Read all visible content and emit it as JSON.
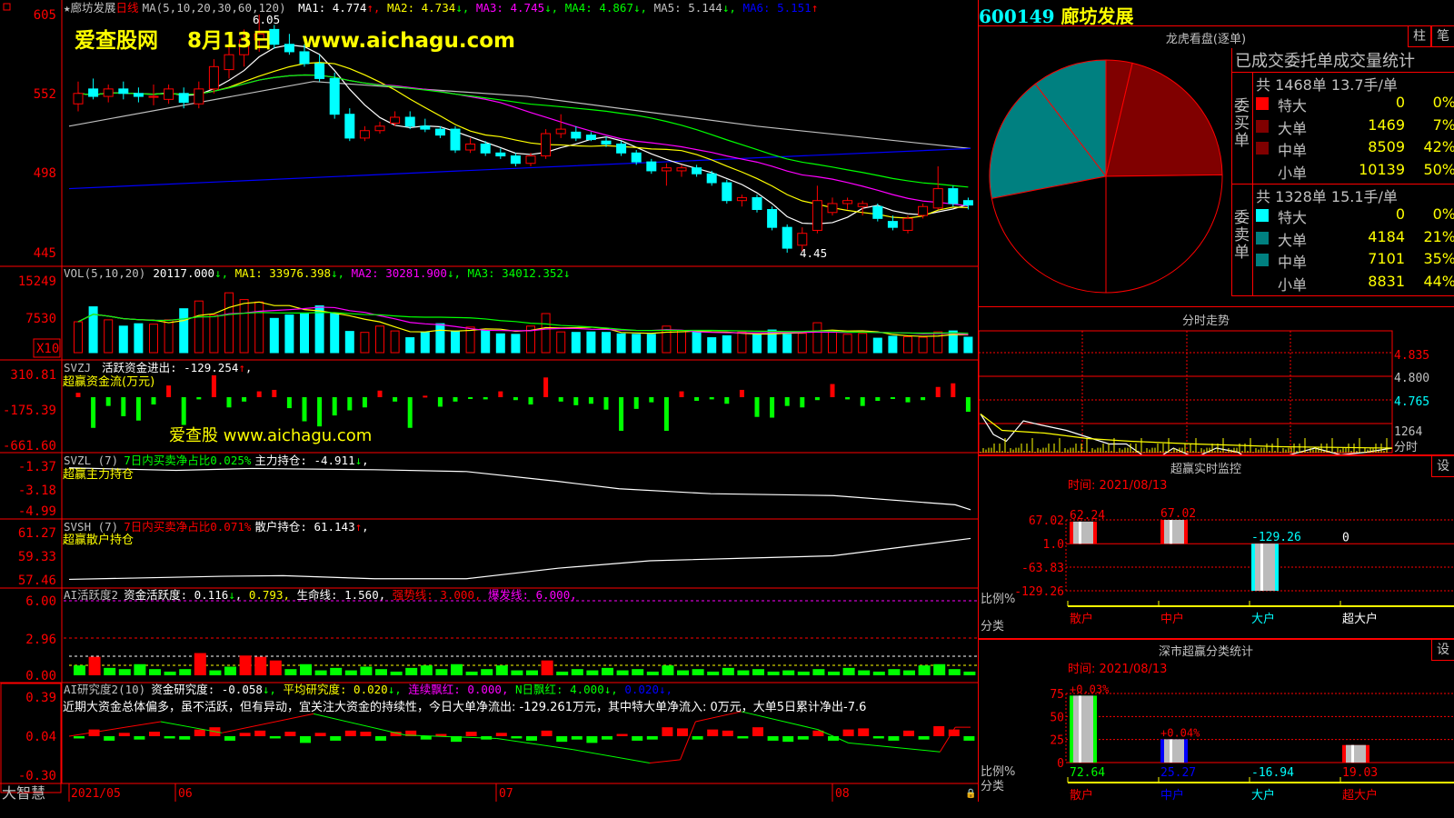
{
  "stock": {
    "code": "600149",
    "name": "廊坊发展"
  },
  "main": {
    "header": {
      "name": "廊坊发展",
      "period": "日线",
      "ma_params": "MA(5,10,20,30,60,120)",
      "ma1": "MA1: 4.774",
      "ma2": "MA2: 4.734",
      "ma3": "MA3: 4.745",
      "ma4": "MA4: 4.867",
      "ma5": "MA5: 5.144",
      "ma6": "MA6: 5.151"
    },
    "watermark": "爱查股网    8月13日    www.aichagu.com",
    "high_label": "6.05",
    "low_label": "4.45",
    "y_ticks": [
      "605",
      "552",
      "498",
      "445"
    ],
    "candles": [
      [
        5.45,
        5.6,
        5.4,
        5.52
      ],
      [
        5.55,
        5.62,
        5.48,
        5.5
      ],
      [
        5.5,
        5.58,
        5.46,
        5.55
      ],
      [
        5.55,
        5.6,
        5.48,
        5.52
      ],
      [
        5.52,
        5.56,
        5.46,
        5.5
      ],
      [
        5.5,
        5.58,
        5.44,
        5.5
      ],
      [
        5.48,
        5.58,
        5.45,
        5.55
      ],
      [
        5.52,
        5.56,
        5.42,
        5.46
      ],
      [
        5.45,
        5.6,
        5.42,
        5.55
      ],
      [
        5.55,
        5.75,
        5.52,
        5.7
      ],
      [
        5.68,
        5.85,
        5.62,
        5.78
      ],
      [
        5.78,
        5.95,
        5.7,
        5.88
      ],
      [
        5.88,
        6.05,
        5.8,
        5.92
      ],
      [
        5.95,
        5.98,
        5.82,
        5.85
      ],
      [
        5.85,
        5.92,
        5.78,
        5.8
      ],
      [
        5.8,
        5.85,
        5.7,
        5.72
      ],
      [
        5.72,
        5.78,
        5.6,
        5.62
      ],
      [
        5.62,
        5.66,
        5.35,
        5.38
      ],
      [
        5.38,
        5.42,
        5.2,
        5.22
      ],
      [
        5.22,
        5.3,
        5.2,
        5.27
      ],
      [
        5.27,
        5.33,
        5.25,
        5.3
      ],
      [
        5.32,
        5.4,
        5.3,
        5.36
      ],
      [
        5.36,
        5.4,
        5.28,
        5.3
      ],
      [
        5.3,
        5.35,
        5.26,
        5.28
      ],
      [
        5.28,
        5.3,
        5.22,
        5.24
      ],
      [
        5.28,
        5.3,
        5.12,
        5.14
      ],
      [
        5.14,
        5.22,
        5.12,
        5.18
      ],
      [
        5.18,
        5.2,
        5.1,
        5.12
      ],
      [
        5.12,
        5.15,
        5.08,
        5.1
      ],
      [
        5.1,
        5.12,
        5.03,
        5.05
      ],
      [
        5.05,
        5.12,
        5.03,
        5.1
      ],
      [
        5.1,
        5.28,
        5.08,
        5.25
      ],
      [
        5.25,
        5.38,
        5.22,
        5.28
      ],
      [
        5.26,
        5.3,
        5.2,
        5.22
      ],
      [
        5.24,
        5.26,
        5.2,
        5.21
      ],
      [
        5.2,
        5.23,
        5.16,
        5.18
      ],
      [
        5.18,
        5.2,
        5.1,
        5.12
      ],
      [
        5.12,
        5.14,
        5.04,
        5.06
      ],
      [
        5.06,
        5.08,
        4.98,
        5.0
      ],
      [
        5.0,
        5.05,
        4.9,
        5.02
      ],
      [
        5.0,
        5.04,
        4.96,
        5.02
      ],
      [
        5.02,
        5.04,
        4.96,
        4.98
      ],
      [
        4.98,
        5.0,
        4.9,
        4.92
      ],
      [
        4.92,
        4.94,
        4.78,
        4.8
      ],
      [
        4.8,
        4.84,
        4.76,
        4.82
      ],
      [
        4.82,
        4.84,
        4.72,
        4.74
      ],
      [
        4.74,
        4.76,
        4.6,
        4.62
      ],
      [
        4.62,
        4.64,
        4.45,
        4.48
      ],
      [
        4.5,
        4.62,
        4.46,
        4.58
      ],
      [
        4.6,
        4.9,
        4.58,
        4.8
      ],
      [
        4.72,
        4.82,
        4.7,
        4.78
      ],
      [
        4.78,
        4.82,
        4.74,
        4.8
      ],
      [
        4.76,
        4.8,
        4.7,
        4.78
      ],
      [
        4.76,
        4.78,
        4.66,
        4.68
      ],
      [
        4.66,
        4.7,
        4.6,
        4.62
      ],
      [
        4.6,
        4.7,
        4.58,
        4.68
      ],
      [
        4.7,
        4.78,
        4.68,
        4.76
      ],
      [
        4.75,
        5.03,
        4.74,
        4.88
      ],
      [
        4.88,
        4.9,
        4.76,
        4.78
      ],
      [
        4.8,
        4.82,
        4.74,
        4.77
      ]
    ],
    "ma5_line": [
      [
        0,
        5.3
      ],
      [
        16,
        5.6
      ],
      [
        30,
        5.5
      ],
      [
        45,
        5.3
      ],
      [
        59,
        5.15
      ]
    ],
    "ma6_line": [
      [
        0,
        4.88
      ],
      [
        30,
        5.02
      ],
      [
        59,
        5.15
      ]
    ]
  },
  "volume": {
    "header": {
      "label": "VOL(5,10,20)",
      "value": "20117.000",
      "ma1": "MA1: 33976.398",
      "ma2": "MA2: 30281.900",
      "ma3": "MA3: 34012.352"
    },
    "y_ticks": [
      "15249",
      "7530"
    ],
    "unit": "X10",
    "values": [
      6400,
      9500,
      6800,
      5500,
      6000,
      5900,
      6800,
      9100,
      10700,
      7800,
      12400,
      11000,
      10500,
      7100,
      7800,
      8200,
      9700,
      8100,
      4400,
      4200,
      5500,
      4500,
      3100,
      4200,
      6000,
      4500,
      5300,
      4600,
      3900,
      3800,
      5500,
      8100,
      4300,
      4200,
      4300,
      4200,
      3900,
      3800,
      3800,
      5500,
      4600,
      4600,
      3100,
      3500,
      4300,
      3800,
      4700,
      3800,
      4000,
      6200,
      4600,
      3800,
      4000,
      3000,
      3400,
      3300,
      3200,
      4300,
      4500,
      3200
    ]
  },
  "svzj": {
    "header": {
      "label": "SVZJ",
      "text": "活跃资金进出: -129.254",
      "sub": "超赢资金流(万元)"
    },
    "y_ticks": [
      "310.81",
      "-175.39",
      "-661.60"
    ],
    "watermark": "爱查股 www.aichagu.com",
    "values": [
      60,
      -420,
      -120,
      -260,
      -320,
      -100,
      160,
      -380,
      -30,
      300,
      -140,
      -60,
      80,
      100,
      -150,
      -330,
      -400,
      -250,
      -180,
      -140,
      90,
      -60,
      -420,
      20,
      -130,
      -60,
      -20,
      -30,
      80,
      -40,
      -100,
      270,
      -60,
      -110,
      -90,
      -170,
      -460,
      -160,
      -70,
      -460,
      80,
      -50,
      -30,
      -90,
      100,
      -270,
      -280,
      -120,
      -140,
      -40,
      180,
      -30,
      -120,
      -50,
      -20,
      -70,
      -40,
      140,
      190,
      -200
    ]
  },
  "svzl": {
    "header": {
      "label": "SVZL (7)",
      "ratio": "7日内买卖净占比0.025%",
      "value": "主力持仓: -4.911",
      "sub": "超赢主力持仓"
    },
    "y_ticks": [
      "-1.37",
      "-3.18",
      "-4.99"
    ],
    "line": [
      [
        0,
        -1.5
      ],
      [
        7,
        -1.7
      ],
      [
        12,
        -1.55
      ],
      [
        20,
        -1.65
      ],
      [
        26,
        -1.8
      ],
      [
        32,
        -2.6
      ],
      [
        36,
        -3.2
      ],
      [
        42,
        -3.6
      ],
      [
        50,
        -3.75
      ],
      [
        58,
        -4.5
      ],
      [
        59,
        -4.9
      ]
    ]
  },
  "svsh": {
    "header": {
      "label": "SVSH (7)",
      "ratio": "7日内买卖净占比0.071%",
      "value": "散户持仓: 61.143",
      "sub": "超赢散户持仓"
    },
    "y_ticks": [
      "61.27",
      "59.33",
      "57.46"
    ],
    "line": [
      [
        0,
        57.5
      ],
      [
        10,
        57.75
      ],
      [
        14,
        57.8
      ],
      [
        20,
        57.55
      ],
      [
        26,
        57.55
      ],
      [
        32,
        58.4
      ],
      [
        38,
        59.0
      ],
      [
        44,
        59.2
      ],
      [
        50,
        59.4
      ],
      [
        59,
        60.8
      ]
    ]
  },
  "ai_active": {
    "header": {
      "label": "AI活跃度2",
      "value": "资金活跃度: 0.116",
      "v2": "0.793,",
      "life": "生命线: 1.560,",
      "strong": "强势线: 3.000,",
      "burst": "爆发线: 6.000,"
    },
    "y_ticks": [
      "6.00",
      "2.96",
      "0.00"
    ],
    "values": [
      0.8,
      1.5,
      0.6,
      0.5,
      0.9,
      0.5,
      0.3,
      0.5,
      1.8,
      0.4,
      0.7,
      1.6,
      1.5,
      1.2,
      0.5,
      0.9,
      0.4,
      0.6,
      0.4,
      0.7,
      0.5,
      0.3,
      0.6,
      0.8,
      0.5,
      0.9,
      0.3,
      0.5,
      0.8,
      0.4,
      0.4,
      1.2,
      0.3,
      0.5,
      0.4,
      0.6,
      0.4,
      0.5,
      0.3,
      0.8,
      0.4,
      0.5,
      0.3,
      0.6,
      0.4,
      0.5,
      0.3,
      0.4,
      0.3,
      0.5,
      0.3,
      0.6,
      0.4,
      0.3,
      0.5,
      0.4,
      0.8,
      0.9,
      0.5,
      0.3
    ]
  },
  "ai_research": {
    "header": {
      "label": "AI研究度2(10)",
      "value": "资金研究度: -0.058",
      "avg": "平均研究度: 0.020",
      "red": "连续飘红: 0.000,",
      "nred": "N日飘红: 4.000",
      "last": "0.020"
    },
    "comment": "近期大资金总体偏多，虽不活跃，但有异动，宜关注大资金的持续性，今日大单净流出: -129.261万元，其中特大单净流入: 0万元，大单5日累计净出-7.6",
    "y_ticks": [
      "0.39",
      "0.04",
      "-0.30"
    ],
    "values": [
      -0.02,
      0.06,
      -0.04,
      0.03,
      -0.03,
      0.04,
      -0.02,
      -0.03,
      0.06,
      0.08,
      -0.04,
      0.03,
      0.05,
      -0.02,
      0.04,
      -0.06,
      0.03,
      -0.04,
      0.05,
      0.04,
      -0.04,
      0.04,
      0.05,
      -0.03,
      0.02,
      -0.05,
      0.04,
      -0.03,
      0.03,
      -0.02,
      -0.04,
      0.05,
      -0.05,
      -0.03,
      -0.06,
      -0.03,
      0.02,
      -0.04,
      -0.03,
      0.08,
      0.07,
      -0.03,
      0.06,
      0.05,
      -0.02,
      0.08,
      -0.04,
      -0.05,
      -0.03,
      0.05,
      -0.04,
      0.06,
      0.07,
      -0.02,
      -0.04,
      0.05,
      -0.03,
      0.09,
      0.06,
      -0.04
    ],
    "line": [
      [
        0,
        0.04
      ],
      [
        6,
        0.17
      ],
      [
        10,
        0.07
      ],
      [
        16,
        0.24
      ],
      [
        22,
        0.05
      ],
      [
        28,
        0.02
      ],
      [
        33,
        -0.08
      ],
      [
        38,
        -0.2
      ],
      [
        40,
        -0.17
      ],
      [
        41,
        0.17
      ],
      [
        44,
        0.26
      ],
      [
        49,
        0.1
      ],
      [
        51,
        -0.02
      ],
      [
        57,
        -0.1
      ],
      [
        58,
        0.12
      ],
      [
        59,
        0.12
      ]
    ]
  },
  "date_axis": [
    "2021/05",
    "06",
    "07",
    "08"
  ],
  "bottom_label": "大智慧",
  "lhkp": {
    "title": "龙虎看盘(逐单)",
    "btn_bar": "柱",
    "btn_stroke": "笔",
    "stat_title": "已成交委托单成交量统计",
    "buy": {
      "label": "委买单",
      "summary": "共 1468单 13.7手/单",
      "rows": [
        {
          "name": "特大",
          "value": "0",
          "pct": "0%",
          "color": "#ff0000"
        },
        {
          "name": "大单",
          "value": "1469",
          "pct": "7%",
          "color": "#800000"
        },
        {
          "name": "中单",
          "value": "8509",
          "pct": "42%",
          "color": "#800000"
        },
        {
          "name": "小单",
          "value": "10139",
          "pct": "50%",
          "color": ""
        }
      ]
    },
    "sell": {
      "label": "委卖单",
      "summary": "共 1328单 15.1手/单",
      "rows": [
        {
          "name": "特大",
          "value": "0",
          "pct": "0%",
          "color": "#00ffff"
        },
        {
          "name": "大单",
          "value": "4184",
          "pct": "21%",
          "color": "#008080"
        },
        {
          "name": "中单",
          "value": "7101",
          "pct": "35%",
          "color": "#008080"
        },
        {
          "name": "小单",
          "value": "8831",
          "pct": "44%",
          "color": ""
        }
      ]
    }
  },
  "fenshi": {
    "title": "分时走势",
    "y_ticks": [
      "4.835",
      "4.800",
      "4.765"
    ],
    "vol_label": "1264",
    "tab_label": "分时",
    "price": [
      [
        0,
        4.79
      ],
      [
        3,
        4.775
      ],
      [
        6,
        4.77
      ],
      [
        10,
        4.785
      ],
      [
        14,
        4.782
      ],
      [
        20,
        4.778
      ],
      [
        26,
        4.772
      ],
      [
        30,
        4.768
      ],
      [
        34,
        4.768
      ],
      [
        40,
        4.755
      ],
      [
        45,
        4.765
      ],
      [
        50,
        4.758
      ],
      [
        55,
        4.765
      ],
      [
        60,
        4.762
      ],
      [
        66,
        4.75
      ],
      [
        72,
        4.76
      ],
      [
        78,
        4.765
      ],
      [
        84,
        4.76
      ],
      [
        90,
        4.762
      ],
      [
        96,
        4.765
      ]
    ],
    "avg": [
      [
        0,
        4.79
      ],
      [
        5,
        4.778
      ],
      [
        15,
        4.776
      ],
      [
        25,
        4.772
      ],
      [
        35,
        4.77
      ],
      [
        50,
        4.768
      ],
      [
        70,
        4.766
      ],
      [
        96,
        4.765
      ]
    ]
  },
  "monitor": {
    "title": "超赢实时监控",
    "set": "设",
    "time": "时间: 2021/08/13",
    "y_ticks": [
      "67.02",
      "1.0",
      "-63.83",
      "-129.26"
    ],
    "bars": [
      {
        "cat": "散户",
        "value": 62.24,
        "label": "62.24"
      },
      {
        "cat": "中户",
        "value": 67.02,
        "label": "67.02"
      },
      {
        "cat": "大户",
        "value": -129.26,
        "label": "-129.26"
      },
      {
        "cat": "超大户",
        "value": 0,
        "label": "0"
      }
    ],
    "ratio_label": "比例%",
    "cat_label": "分类",
    "cat_colors": [
      "#ff0000",
      "#ff0000",
      "#00ffff",
      "#ffffff"
    ]
  },
  "szstats": {
    "title": "深市超赢分类统计",
    "set": "设",
    "time": "时间: 2021/08/13",
    "y_ticks": [
      "75",
      "50",
      "25",
      "0"
    ],
    "bars": [
      {
        "cat": "散户",
        "value": 72.64,
        "label": "72.64",
        "delta": "+0.03%",
        "color": "#00ff00"
      },
      {
        "cat": "中户",
        "value": 25.27,
        "label": "25.27",
        "delta": "+0.04%",
        "color": "#0000ff"
      },
      {
        "cat": "大户",
        "value": -16.94,
        "label": "-16.94",
        "delta": "",
        "color": "#00ffff"
      },
      {
        "cat": "超大户",
        "value": 19.03,
        "label": "19.03",
        "delta": "",
        "color": "#ff0000"
      }
    ],
    "ratio_label": "比例%",
    "cat_label": "分类",
    "cat_colors": [
      "#ff0000",
      "#0000ff",
      "#00ffff",
      "#ff0000"
    ]
  },
  "colors": {
    "up": "#ff0000",
    "down": "#00ffff",
    "grid": "#ff0000",
    "ma1": "#ffffff",
    "ma2": "#ffff00",
    "ma3": "#ff00ff",
    "ma4": "#00ff00",
    "ma5": "#c0c0c0",
    "ma6": "#0000ff"
  }
}
